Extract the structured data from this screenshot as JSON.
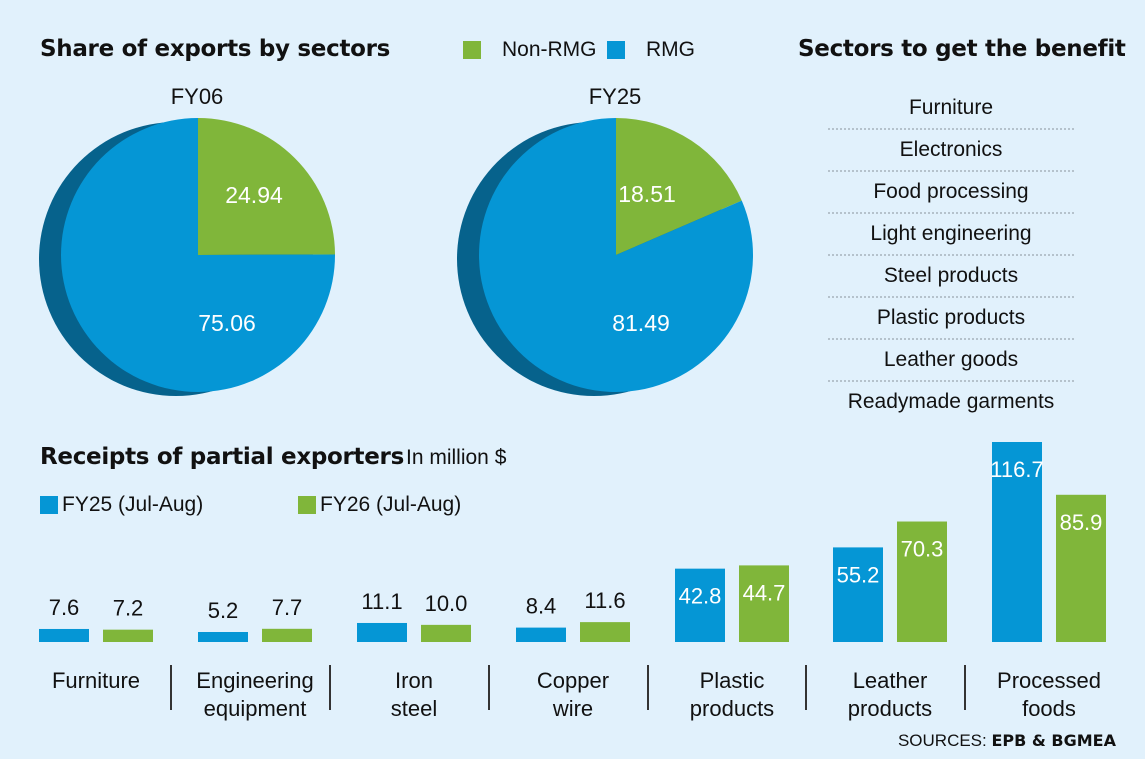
{
  "pies": {
    "title": "Share of exports by sectors",
    "legend": [
      {
        "label": "Non-RMG",
        "color": "#80b63a"
      },
      {
        "label": "RMG",
        "color": "#0596d5"
      }
    ]
  },
  "sectors": {
    "title": "Sectors to get the benefit",
    "items": [
      "Furniture",
      "Electronics",
      "Food processing",
      "Light engineering",
      "Steel products",
      "Plastic products",
      "Leather goods",
      "Readymade garments"
    ]
  },
  "bars": {
    "title": "Receipts of partial exporters",
    "unit": "In million $",
    "legend": [
      {
        "label": "FY25 (Jul-Aug)",
        "color": "#0596d5"
      },
      {
        "label": "FY26 (Jul-Aug)",
        "color": "#80b63a"
      }
    ],
    "categories_display": [
      [
        "Furniture"
      ],
      [
        "Engineering",
        "equipment"
      ],
      [
        "Iron",
        "steel"
      ],
      [
        "Copper",
        "wire"
      ],
      [
        "Plastic",
        "products"
      ],
      [
        "Leather",
        "products"
      ],
      [
        "Processed",
        "foods"
      ]
    ]
  },
  "source": {
    "prefix": "SOURCES:",
    "names": "EPB & BGMEA"
  },
  "colors": {
    "blue": "#0596d5",
    "green": "#80b63a",
    "shadow": "#06628c",
    "background": "#e1f1fc"
  },
  "chart_data": [
    {
      "type": "pie",
      "title": "Share of exports by sectors — FY06",
      "label": "FY06",
      "categories": [
        "Non-RMG",
        "RMG"
      ],
      "values": [
        24.94,
        75.06
      ],
      "value_labels": [
        "24.94",
        "75.06"
      ]
    },
    {
      "type": "pie",
      "title": "Share of exports by sectors — FY25",
      "label": "FY25",
      "categories": [
        "Non-RMG",
        "RMG"
      ],
      "values": [
        18.51,
        81.49
      ],
      "value_labels": [
        "18.51",
        "81.49"
      ]
    },
    {
      "type": "bar",
      "title": "Receipts of partial exporters",
      "ylabel": "In million $",
      "xlabel": "",
      "categories": [
        "Furniture",
        "Engineering equipment",
        "Iron steel",
        "Copper wire",
        "Plastic products",
        "Leather products",
        "Processed foods"
      ],
      "series": [
        {
          "name": "FY25 (Jul-Aug)",
          "values": [
            7.6,
            5.2,
            11.1,
            8.4,
            42.8,
            55.2,
            116.7
          ],
          "labels": [
            "7.6",
            "5.2",
            "11.1",
            "8.4",
            "42.8",
            "55.2",
            "116.7"
          ]
        },
        {
          "name": "FY26 (Jul-Aug)",
          "values": [
            7.2,
            7.7,
            10.0,
            11.6,
            44.7,
            70.3,
            85.9
          ],
          "labels": [
            "7.2",
            "7.7",
            "10.0",
            "11.6",
            "44.7",
            "70.3",
            "85.9"
          ]
        }
      ],
      "ylim": [
        0,
        116.7
      ],
      "grid": false,
      "legend": "top-left"
    }
  ]
}
